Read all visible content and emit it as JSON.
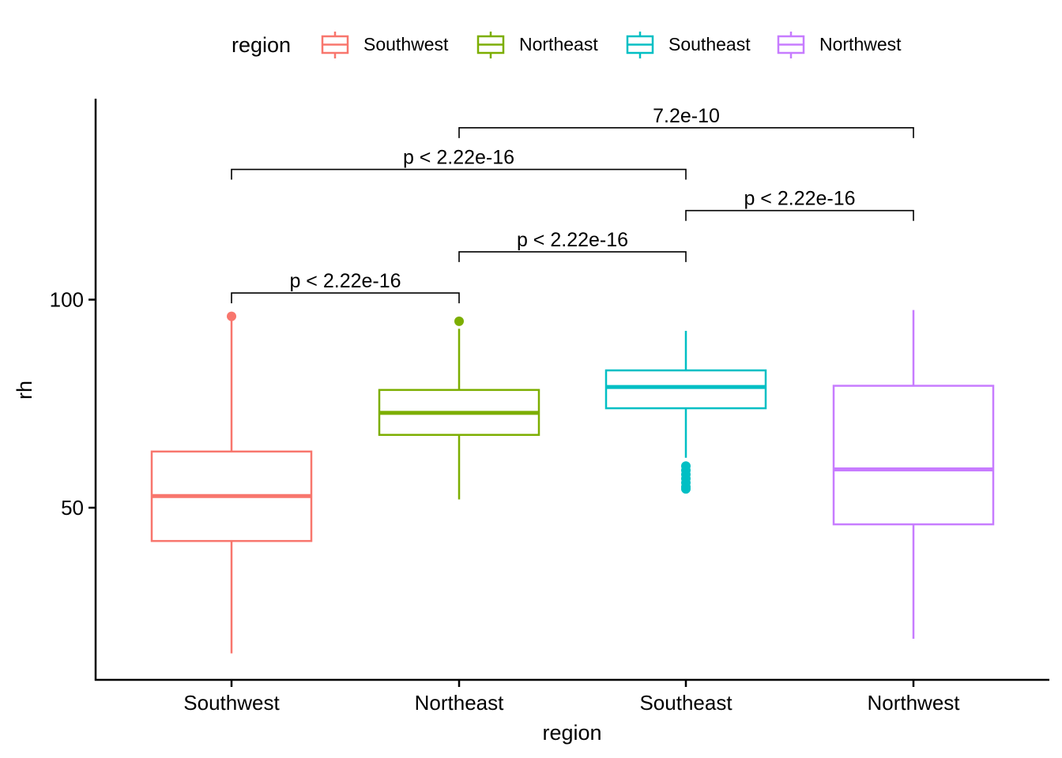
{
  "chart_data": {
    "type": "box",
    "xlabel": "region",
    "ylabel": "rh",
    "ylim": [
      12,
      146
    ],
    "yticks": [
      50,
      100
    ],
    "grid": false,
    "legend": {
      "title": "region",
      "position": "top",
      "entries": [
        "Southwest",
        "Northeast",
        "Southeast",
        "Northwest"
      ]
    },
    "categories": [
      "Southwest",
      "Northeast",
      "Southeast",
      "Northwest"
    ],
    "colors": {
      "Southwest": "#F8766D",
      "Northeast": "#7CAE00",
      "Southeast": "#00BFC4",
      "Northwest": "#C77CFF"
    },
    "boxes": [
      {
        "category": "Southwest",
        "whisker_low": 15,
        "q1": 42,
        "median": 52.8,
        "q3": 63.5,
        "whisker_high": 95,
        "outliers": [
          96
        ]
      },
      {
        "category": "Northeast",
        "whisker_low": 52,
        "q1": 67.5,
        "median": 72.8,
        "q3": 78.3,
        "whisker_high": 93,
        "outliers": [
          94.8
        ]
      },
      {
        "category": "Southeast",
        "whisker_low": 62,
        "q1": 73.9,
        "median": 79,
        "q3": 83,
        "whisker_high": 92.5,
        "outliers": [
          60,
          59,
          58,
          57,
          56,
          55,
          54.5
        ]
      },
      {
        "category": "Northwest",
        "whisker_low": 18.5,
        "q1": 46,
        "median": 59.2,
        "q3": 79.3,
        "whisker_high": 97.5,
        "outliers": []
      }
    ],
    "comparisons": [
      {
        "from": "Southwest",
        "to": "Northeast",
        "label": "p < 2.22e-16",
        "y": 101.6
      },
      {
        "from": "Northeast",
        "to": "Southeast",
        "label": "p < 2.22e-16",
        "y": 111.5
      },
      {
        "from": "Southeast",
        "to": "Northwest",
        "label": "p < 2.22e-16",
        "y": 121.4
      },
      {
        "from": "Southwest",
        "to": "Southeast",
        "label": "p < 2.22e-16",
        "y": 131.3
      },
      {
        "from": "Northeast",
        "to": "Northwest",
        "label": "7.2e-10",
        "y": 141.3
      }
    ]
  }
}
